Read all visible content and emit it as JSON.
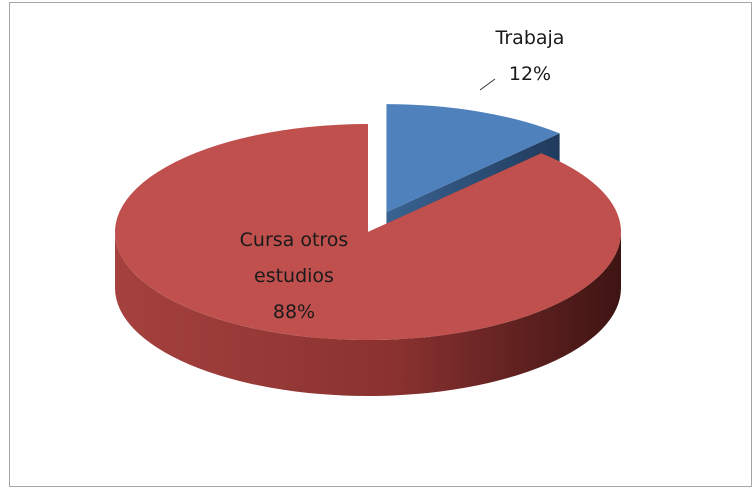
{
  "chart_data": {
    "type": "pie",
    "categories": [
      "Trabaja",
      "Cursa otros estudios"
    ],
    "values": [
      12,
      88
    ],
    "value_labels": [
      "12%",
      "88%"
    ],
    "colors": [
      "#4f81bd",
      "#c0504d"
    ],
    "exploded": [
      true,
      false
    ]
  }
}
